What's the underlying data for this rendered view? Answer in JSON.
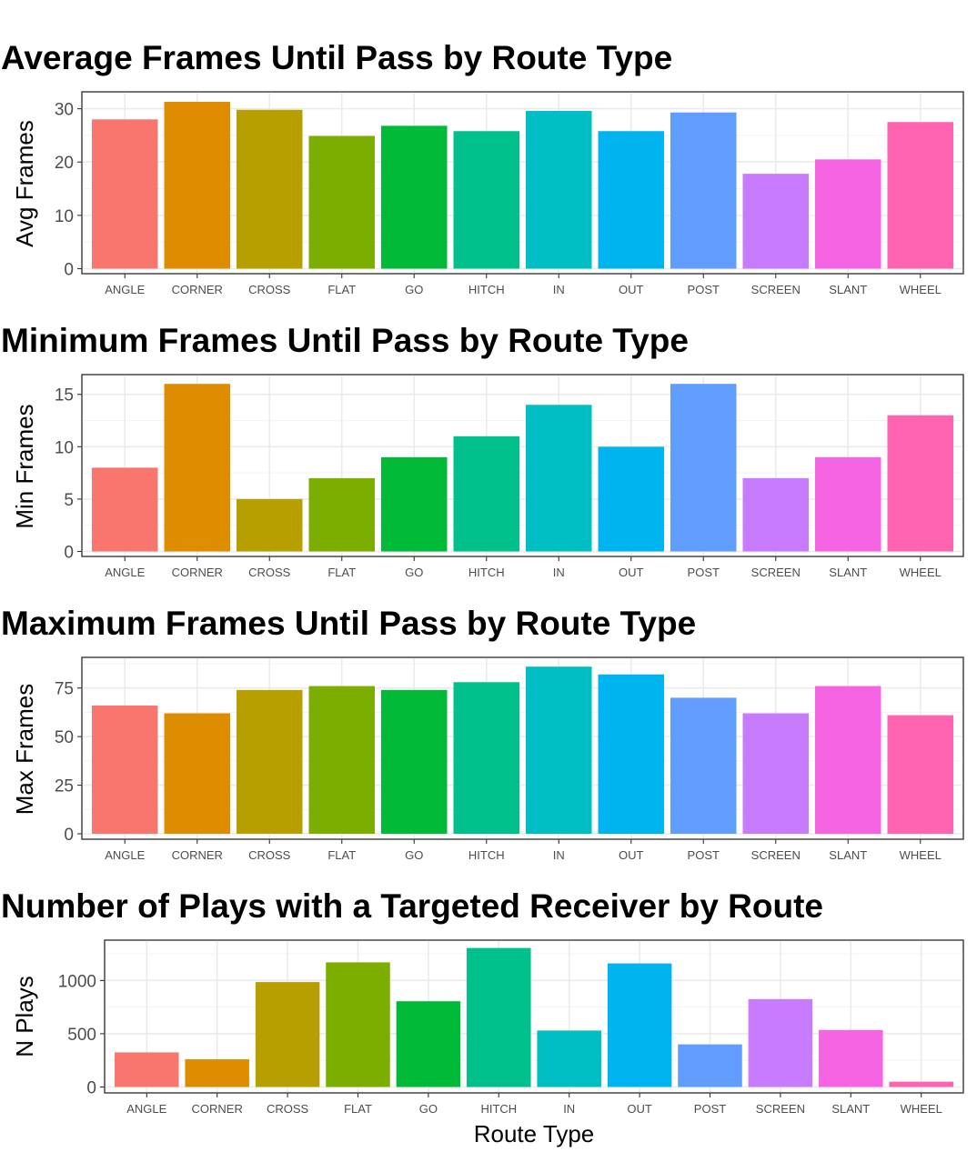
{
  "colors": {
    "ANGLE": "#F8766D",
    "CORNER": "#DE8C00",
    "CROSS": "#B79F00",
    "FLAT": "#7CAE00",
    "GO": "#00BA38",
    "HITCH": "#00C08B",
    "IN": "#00BFC4",
    "OUT": "#00B4F0",
    "POST": "#619CFF",
    "SCREEN": "#C77CFF",
    "SLANT": "#F564E3",
    "WHEEL": "#FF64B0"
  },
  "chart_data": [
    {
      "type": "bar",
      "title": "Average Frames Until Pass by Route Type",
      "xlabel": "",
      "ylabel": "Avg Frames",
      "categories": [
        "ANGLE",
        "CORNER",
        "CROSS",
        "FLAT",
        "GO",
        "HITCH",
        "IN",
        "OUT",
        "POST",
        "SCREEN",
        "SLANT",
        "WHEEL"
      ],
      "values": [
        28,
        31.3,
        29.8,
        24.9,
        26.8,
        25.8,
        29.6,
        25.8,
        29.3,
        17.8,
        20.5,
        27.5
      ],
      "ylim": [
        0,
        33
      ],
      "yticks": [
        0,
        10,
        20,
        30
      ],
      "grid": true,
      "legend": "none"
    },
    {
      "type": "bar",
      "title": "Minimum Frames Until Pass by Route Type",
      "xlabel": "",
      "ylabel": "Min Frames",
      "categories": [
        "ANGLE",
        "CORNER",
        "CROSS",
        "FLAT",
        "GO",
        "HITCH",
        "IN",
        "OUT",
        "POST",
        "SCREEN",
        "SLANT",
        "WHEEL"
      ],
      "values": [
        8,
        16,
        5,
        7,
        9,
        11,
        14,
        10,
        16,
        7,
        9,
        13
      ],
      "ylim": [
        0,
        16.8
      ],
      "yticks": [
        0,
        5,
        10,
        15
      ],
      "grid": true,
      "legend": "none"
    },
    {
      "type": "bar",
      "title": "Maximum Frames Until Pass by Route Type",
      "xlabel": "",
      "ylabel": "Max Frames",
      "categories": [
        "ANGLE",
        "CORNER",
        "CROSS",
        "FLAT",
        "GO",
        "HITCH",
        "IN",
        "OUT",
        "POST",
        "SCREEN",
        "SLANT",
        "WHEEL"
      ],
      "values": [
        66,
        62,
        74,
        76,
        74,
        78,
        86,
        82,
        70,
        62,
        76,
        61
      ],
      "ylim": [
        0,
        90.3
      ],
      "yticks": [
        0,
        25,
        50,
        75
      ],
      "grid": true,
      "legend": "none"
    },
    {
      "type": "bar",
      "title": "Number of Plays with a Targeted Receiver by Route",
      "xlabel": "Route Type",
      "ylabel": "N Plays",
      "categories": [
        "ANGLE",
        "CORNER",
        "CROSS",
        "FLAT",
        "GO",
        "HITCH",
        "IN",
        "OUT",
        "POST",
        "SCREEN",
        "SLANT",
        "WHEEL"
      ],
      "values": [
        325,
        260,
        985,
        1170,
        805,
        1305,
        530,
        1160,
        400,
        825,
        535,
        50
      ],
      "ylim": [
        0,
        1370
      ],
      "yticks": [
        0,
        500,
        1000
      ],
      "grid": true,
      "legend": "none"
    }
  ]
}
